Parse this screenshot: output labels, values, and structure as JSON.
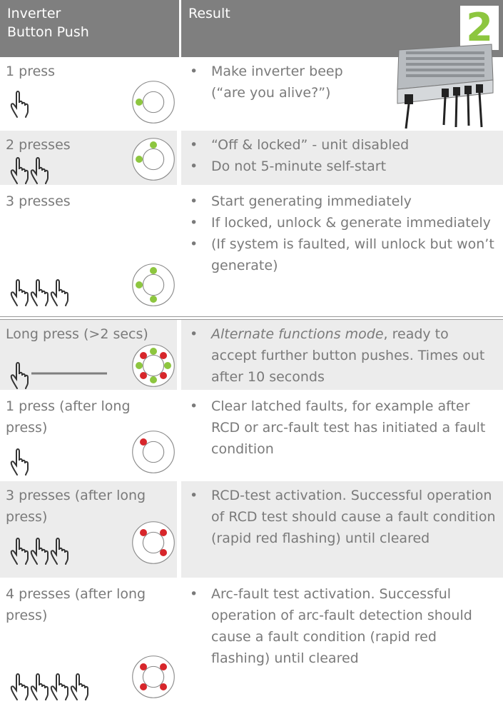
{
  "header": {
    "columns": [
      "Inverter Button Push",
      "Result"
    ],
    "badge": "2"
  },
  "rows": [
    {
      "action": "1 press",
      "results": [
        "Make inverter beep (“are you alive?”)"
      ]
    },
    {
      "action": "2 presses",
      "results": [
        "“Off & locked” - unit disabled",
        "Do not 5-minute self-start"
      ]
    },
    {
      "action": "3 presses",
      "results": [
        "Start generating immediately",
        "If locked, unlock & generate immediately",
        "(If system is faulted, will unlock but won’t generate)"
      ]
    },
    {
      "action": "Long press (>2 secs)",
      "results": [
        {
          "emphasis": "Alternate functions mode",
          "text": ", ready to accept further button pushes. Times out after 10 seconds"
        }
      ]
    },
    {
      "action": "1 press (after long press)",
      "results": [
        "Clear latched faults, for example after RCD or arc-fault test has initiated a fault condition"
      ]
    },
    {
      "action": "3 presses (after long press)",
      "results": [
        "RCD-test activation. Successful operation of RCD test should cause a fault condition (rapid red flashing) until cleared"
      ]
    },
    {
      "action": "4 presses (after long press)",
      "results": [
        "Arc-fault test activation. Successful operation of arc-fault detection should cause a fault condition (rapid red flashing) until cleared"
      ]
    }
  ]
}
